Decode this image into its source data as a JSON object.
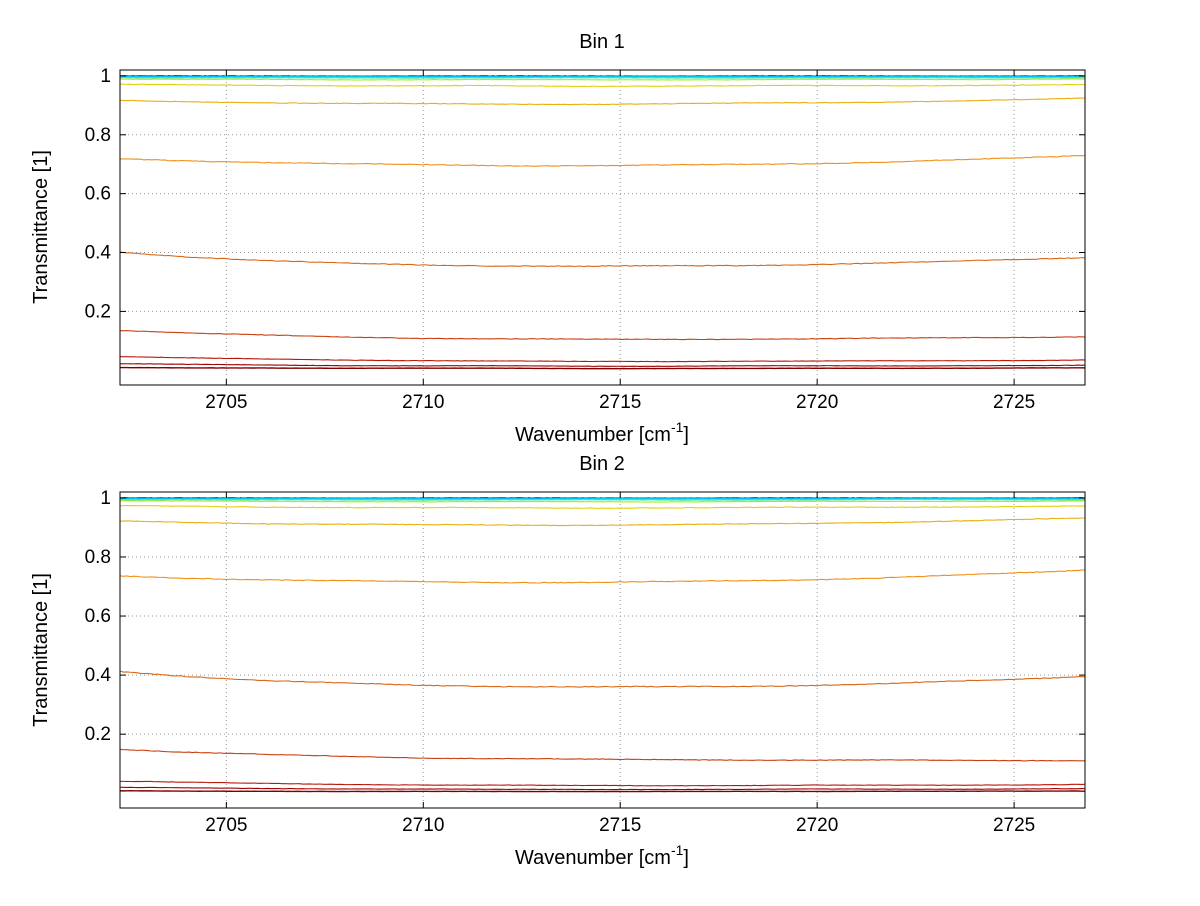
{
  "figure": {
    "background": "#ffffff",
    "titles": [
      "Bin 1",
      "Bin 2"
    ]
  },
  "axis": {
    "xlabel_pre": "Wavenumber [cm",
    "xlabel_sup": "-1",
    "xlabel_post": "]",
    "ylabel": "Transmittance [1]",
    "xticks": [
      2705,
      2710,
      2715,
      2720,
      2725
    ],
    "yticks": [
      0.2,
      0.4,
      0.6,
      0.8,
      1
    ],
    "grid": true
  },
  "style": {
    "grid_color": "#999999",
    "axis_color": "#000000",
    "tick_label_size": 19
  },
  "chart_data": [
    {
      "type": "line",
      "title": "Bin 1",
      "xlabel": "Wavenumber [cm^-1]",
      "ylabel": "Transmittance [1]",
      "xlim": [
        2702.3,
        2726.8
      ],
      "ylim": [
        -0.05,
        1.02
      ],
      "grid": true,
      "legend": false,
      "x": [
        2702.3,
        2704,
        2706,
        2708,
        2710,
        2712,
        2714,
        2716,
        2718,
        2720,
        2722,
        2724,
        2726,
        2726.8
      ],
      "series": [
        {
          "name": "line-01",
          "color": "#00008F",
          "dash": "8 4 2 4",
          "jitter": 0.0004,
          "values": [
            1,
            1,
            1,
            1,
            1,
            1,
            1,
            1,
            1,
            1,
            1,
            1,
            1,
            1
          ]
        },
        {
          "name": "line-02",
          "color": "#0000F0",
          "jitter": 0.0004,
          "values": [
            0.9995,
            0.9995,
            0.9995,
            0.9995,
            0.9995,
            0.9995,
            0.9995,
            0.9995,
            0.9995,
            0.9995,
            0.9995,
            0.9995,
            0.9995,
            0.9995
          ]
        },
        {
          "name": "line-03",
          "color": "#0050FF",
          "jitter": 0.0005,
          "values": [
            0.999,
            0.999,
            0.999,
            0.999,
            0.999,
            0.999,
            0.999,
            0.999,
            0.999,
            0.999,
            0.999,
            0.999,
            0.999,
            0.999
          ]
        },
        {
          "name": "line-04",
          "color": "#00A8FF",
          "jitter": 0.0005,
          "values": [
            0.998,
            0.998,
            0.998,
            0.998,
            0.998,
            0.998,
            0.998,
            0.998,
            0.998,
            0.998,
            0.998,
            0.998,
            0.998,
            0.998
          ]
        },
        {
          "name": "line-05",
          "color": "#00E0E0",
          "jitter": 0.0006,
          "values": [
            0.996,
            0.996,
            0.996,
            0.996,
            0.996,
            0.996,
            0.996,
            0.996,
            0.996,
            0.996,
            0.996,
            0.996,
            0.996,
            0.996
          ]
        },
        {
          "name": "line-06",
          "color": "#58E890",
          "jitter": 0.0008,
          "values": [
            0.994,
            0.993,
            0.993,
            0.993,
            0.993,
            0.993,
            0.993,
            0.993,
            0.993,
            0.993,
            0.993,
            0.993,
            0.994,
            0.994
          ]
        },
        {
          "name": "line-07",
          "color": "#A8E828",
          "jitter": 0.001,
          "values": [
            0.989,
            0.988,
            0.988,
            0.987,
            0.987,
            0.987,
            0.987,
            0.987,
            0.987,
            0.988,
            0.988,
            0.988,
            0.989,
            0.989
          ]
        },
        {
          "name": "line-08",
          "color": "#E0D010",
          "jitter": 0.0015,
          "values": [
            0.971,
            0.969,
            0.968,
            0.967,
            0.966,
            0.966,
            0.965,
            0.966,
            0.966,
            0.967,
            0.967,
            0.968,
            0.969,
            0.97
          ]
        },
        {
          "name": "line-09",
          "color": "#E8B010",
          "jitter": 0.0015,
          "values": [
            0.916,
            0.912,
            0.909,
            0.907,
            0.905,
            0.904,
            0.904,
            0.905,
            0.907,
            0.909,
            0.912,
            0.916,
            0.921,
            0.924
          ]
        },
        {
          "name": "line-10",
          "color": "#F09018",
          "jitter": 0.002,
          "values": [
            0.718,
            0.712,
            0.706,
            0.701,
            0.698,
            0.696,
            0.695,
            0.696,
            0.699,
            0.703,
            0.709,
            0.716,
            0.725,
            0.73
          ]
        },
        {
          "name": "line-11",
          "color": "#D86818",
          "jitter": 0.002,
          "values": [
            0.402,
            0.386,
            0.372,
            0.363,
            0.358,
            0.355,
            0.353,
            0.354,
            0.356,
            0.36,
            0.365,
            0.372,
            0.38,
            0.384
          ]
        },
        {
          "name": "line-12",
          "color": "#C84010",
          "jitter": 0.0015,
          "values": [
            0.136,
            0.127,
            0.119,
            0.113,
            0.109,
            0.107,
            0.105,
            0.105,
            0.106,
            0.107,
            0.109,
            0.111,
            0.113,
            0.114
          ]
        },
        {
          "name": "line-13",
          "color": "#B81808",
          "jitter": 0.001,
          "values": [
            0.047,
            0.042,
            0.038,
            0.035,
            0.033,
            0.031,
            0.03,
            0.03,
            0.031,
            0.031,
            0.032,
            0.033,
            0.034,
            0.035
          ]
        },
        {
          "name": "line-14",
          "color": "#A00000",
          "jitter": 0.0008,
          "values": [
            0.022,
            0.02,
            0.018,
            0.016,
            0.015,
            0.015,
            0.014,
            0.014,
            0.015,
            0.015,
            0.015,
            0.016,
            0.016,
            0.017
          ]
        },
        {
          "name": "line-15",
          "color": "#800000",
          "jitter": 0.0005,
          "width": 1.4,
          "values": [
            0.009,
            0.008,
            0.008,
            0.007,
            0.007,
            0.007,
            0.006,
            0.006,
            0.006,
            0.007,
            0.007,
            0.007,
            0.008,
            0.008
          ]
        }
      ]
    },
    {
      "type": "line",
      "title": "Bin 2",
      "xlabel": "Wavenumber [cm^-1]",
      "ylabel": "Transmittance [1]",
      "xlim": [
        2702.3,
        2726.8
      ],
      "ylim": [
        -0.05,
        1.02
      ],
      "grid": true,
      "legend": false,
      "x": [
        2702.3,
        2704,
        2706,
        2708,
        2710,
        2712,
        2714,
        2716,
        2718,
        2720,
        2722,
        2724,
        2726,
        2726.8
      ],
      "series": [
        {
          "name": "line-01",
          "color": "#00008F",
          "dash": "8 4 2 4",
          "jitter": 0.0004,
          "values": [
            1,
            1,
            1,
            1,
            1,
            1,
            1,
            1,
            1,
            1,
            1,
            1,
            1,
            1
          ]
        },
        {
          "name": "line-02",
          "color": "#0000F0",
          "jitter": 0.0004,
          "values": [
            0.9995,
            0.9995,
            0.9995,
            0.9995,
            0.9995,
            0.9995,
            0.9995,
            0.9995,
            0.9995,
            0.9995,
            0.9995,
            0.9995,
            0.9995,
            0.9995
          ]
        },
        {
          "name": "line-03",
          "color": "#0050FF",
          "jitter": 0.0005,
          "values": [
            0.999,
            0.999,
            0.999,
            0.999,
            0.999,
            0.999,
            0.999,
            0.999,
            0.999,
            0.999,
            0.999,
            0.999,
            0.999,
            0.999
          ]
        },
        {
          "name": "line-04",
          "color": "#00A8FF",
          "jitter": 0.0005,
          "values": [
            0.998,
            0.998,
            0.998,
            0.998,
            0.998,
            0.998,
            0.998,
            0.998,
            0.998,
            0.998,
            0.998,
            0.998,
            0.998,
            0.998
          ]
        },
        {
          "name": "line-05",
          "color": "#00E0E0",
          "jitter": 0.0006,
          "values": [
            0.996,
            0.996,
            0.996,
            0.996,
            0.996,
            0.996,
            0.996,
            0.996,
            0.996,
            0.996,
            0.996,
            0.996,
            0.996,
            0.996
          ]
        },
        {
          "name": "line-06",
          "color": "#58E890",
          "jitter": 0.0008,
          "values": [
            0.994,
            0.994,
            0.993,
            0.993,
            0.993,
            0.993,
            0.993,
            0.993,
            0.993,
            0.993,
            0.994,
            0.994,
            0.994,
            0.994
          ]
        },
        {
          "name": "line-07",
          "color": "#A8E828",
          "jitter": 0.001,
          "values": [
            0.99,
            0.989,
            0.988,
            0.988,
            0.987,
            0.987,
            0.987,
            0.987,
            0.988,
            0.988,
            0.988,
            0.989,
            0.989,
            0.99
          ]
        },
        {
          "name": "line-08",
          "color": "#E0D010",
          "jitter": 0.0015,
          "values": [
            0.973,
            0.971,
            0.969,
            0.968,
            0.967,
            0.966,
            0.966,
            0.967,
            0.967,
            0.968,
            0.969,
            0.97,
            0.971,
            0.972
          ]
        },
        {
          "name": "line-09",
          "color": "#E8B010",
          "jitter": 0.0015,
          "values": [
            0.921,
            0.917,
            0.913,
            0.911,
            0.909,
            0.908,
            0.908,
            0.909,
            0.911,
            0.914,
            0.918,
            0.923,
            0.929,
            0.932
          ]
        },
        {
          "name": "line-10",
          "color": "#F09018",
          "jitter": 0.002,
          "values": [
            0.735,
            0.729,
            0.723,
            0.719,
            0.716,
            0.714,
            0.714,
            0.716,
            0.719,
            0.724,
            0.731,
            0.74,
            0.75,
            0.756
          ]
        },
        {
          "name": "line-11",
          "color": "#D86818",
          "jitter": 0.002,
          "values": [
            0.413,
            0.396,
            0.381,
            0.372,
            0.366,
            0.362,
            0.36,
            0.36,
            0.362,
            0.366,
            0.372,
            0.381,
            0.391,
            0.396
          ]
        },
        {
          "name": "line-12",
          "color": "#C84010",
          "jitter": 0.0015,
          "values": [
            0.149,
            0.139,
            0.131,
            0.125,
            0.12,
            0.117,
            0.115,
            0.114,
            0.113,
            0.112,
            0.112,
            0.111,
            0.111,
            0.11
          ]
        },
        {
          "name": "line-13",
          "color": "#B81808",
          "jitter": 0.001,
          "values": [
            0.041,
            0.037,
            0.033,
            0.03,
            0.028,
            0.027,
            0.026,
            0.026,
            0.026,
            0.027,
            0.027,
            0.028,
            0.029,
            0.03
          ]
        },
        {
          "name": "line-14",
          "color": "#A00000",
          "jitter": 0.0008,
          "values": [
            0.02,
            0.018,
            0.016,
            0.015,
            0.014,
            0.013,
            0.013,
            0.013,
            0.013,
            0.014,
            0.014,
            0.014,
            0.015,
            0.015
          ]
        },
        {
          "name": "line-15",
          "color": "#800000",
          "jitter": 0.0005,
          "width": 1.4,
          "values": [
            0.008,
            0.007,
            0.007,
            0.006,
            0.006,
            0.006,
            0.006,
            0.006,
            0.006,
            0.006,
            0.007,
            0.007,
            0.007,
            0.007
          ]
        }
      ]
    }
  ]
}
